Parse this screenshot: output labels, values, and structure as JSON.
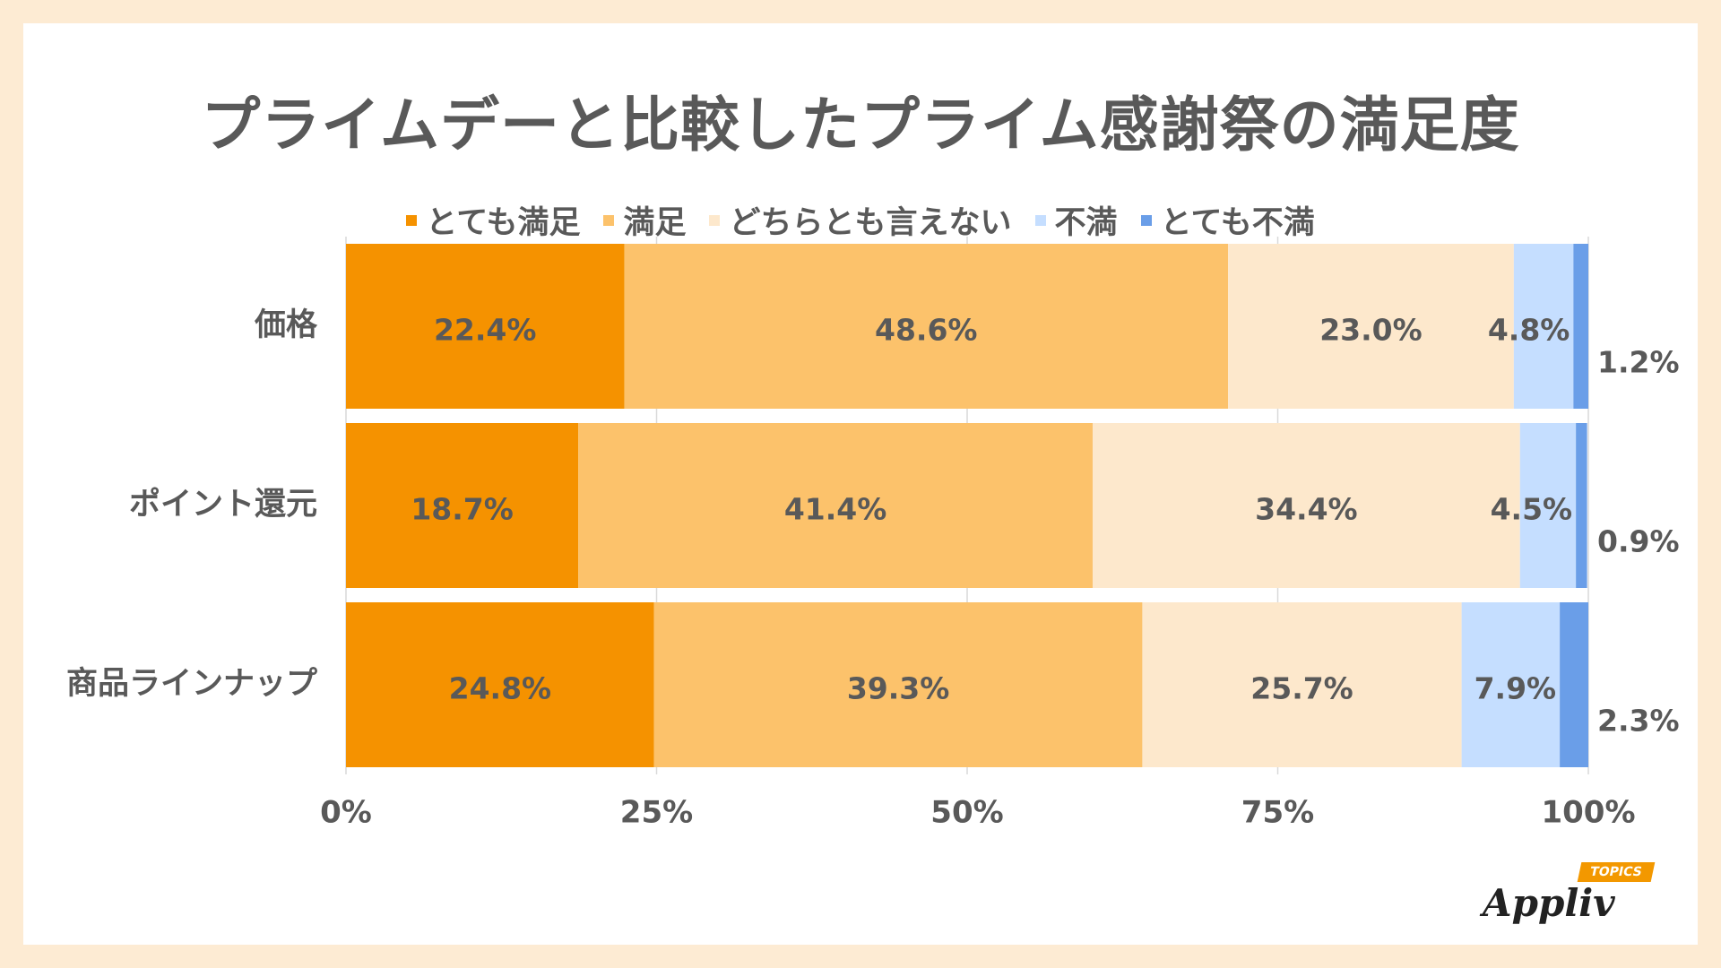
{
  "chart_data": {
    "type": "bar",
    "orientation": "horizontal",
    "stacked": "percent",
    "title": "プライムデーと比較したプライム感謝祭の満足度",
    "categories": [
      "価格",
      "ポイント還元",
      "商品ラインナップ"
    ],
    "series": [
      {
        "name": "とても満足",
        "color": "#f59200",
        "values": [
          22.4,
          18.7,
          24.8
        ]
      },
      {
        "name": "満足",
        "color": "#fcc26b",
        "values": [
          48.6,
          41.4,
          39.3
        ]
      },
      {
        "name": "どちらとも言えない",
        "color": "#fde8cc",
        "values": [
          23.0,
          34.4,
          25.7
        ]
      },
      {
        "name": "不満",
        "color": "#c5deff",
        "values": [
          4.8,
          4.5,
          7.9
        ]
      },
      {
        "name": "とても不満",
        "color": "#6a9ee8",
        "values": [
          1.2,
          0.9,
          2.3
        ]
      }
    ],
    "data_labels": [
      [
        "22.4%",
        "48.6%",
        "23.0%",
        "4.8%",
        "1.2%"
      ],
      [
        "18.7%",
        "41.4%",
        "34.4%",
        "4.5%",
        "0.9%"
      ],
      [
        "24.8%",
        "39.3%",
        "25.7%",
        "7.9%",
        "2.3%"
      ]
    ],
    "x_ticks": [
      "0%",
      "25%",
      "50%",
      "75%",
      "100%"
    ],
    "xlim": [
      0,
      100
    ],
    "legend_position": "top",
    "grid": true
  },
  "logo": {
    "text": "Appliv",
    "badge": "TOPICS"
  }
}
